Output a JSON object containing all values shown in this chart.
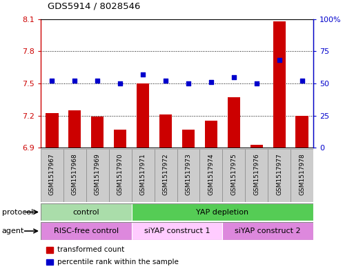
{
  "title": "GDS5914 / 8028546",
  "samples": [
    "GSM1517967",
    "GSM1517968",
    "GSM1517969",
    "GSM1517970",
    "GSM1517971",
    "GSM1517972",
    "GSM1517973",
    "GSM1517974",
    "GSM1517975",
    "GSM1517976",
    "GSM1517977",
    "GSM1517978"
  ],
  "bar_values": [
    7.22,
    7.25,
    7.19,
    7.07,
    7.5,
    7.21,
    7.07,
    7.15,
    7.37,
    6.93,
    8.08,
    7.2
  ],
  "dot_values": [
    52,
    52,
    52,
    50,
    57,
    52,
    50,
    51,
    55,
    50,
    68,
    52
  ],
  "bar_bottom": 6.9,
  "ylim_left": [
    6.9,
    8.1
  ],
  "ylim_right": [
    0,
    100
  ],
  "yticks_left": [
    6.9,
    7.2,
    7.5,
    7.8,
    8.1
  ],
  "yticks_right": [
    0,
    25,
    50,
    75,
    100
  ],
  "ytick_labels_left": [
    "6.9",
    "7.2",
    "7.5",
    "7.8",
    "8.1"
  ],
  "ytick_labels_right": [
    "0",
    "25",
    "50",
    "75",
    "100%"
  ],
  "bar_color": "#cc0000",
  "dot_color": "#0000cc",
  "protocol_row": [
    {
      "label": "control",
      "start": 0,
      "end": 4,
      "color": "#aaddaa"
    },
    {
      "label": "YAP depletion",
      "start": 4,
      "end": 12,
      "color": "#55cc55"
    }
  ],
  "agent_row": [
    {
      "label": "RISC-free control",
      "start": 0,
      "end": 4,
      "color": "#dd88dd"
    },
    {
      "label": "siYAP construct 1",
      "start": 4,
      "end": 8,
      "color": "#ffccff"
    },
    {
      "label": "siYAP construct 2",
      "start": 8,
      "end": 12,
      "color": "#dd88dd"
    }
  ],
  "legend_items": [
    {
      "label": "transformed count",
      "color": "#cc0000"
    },
    {
      "label": "percentile rank within the sample",
      "color": "#0000cc"
    }
  ],
  "xlabel_protocol": "protocol",
  "xlabel_agent": "agent",
  "sample_bg_color": "#cccccc",
  "grid_yticks": [
    7.2,
    7.5,
    7.8
  ]
}
